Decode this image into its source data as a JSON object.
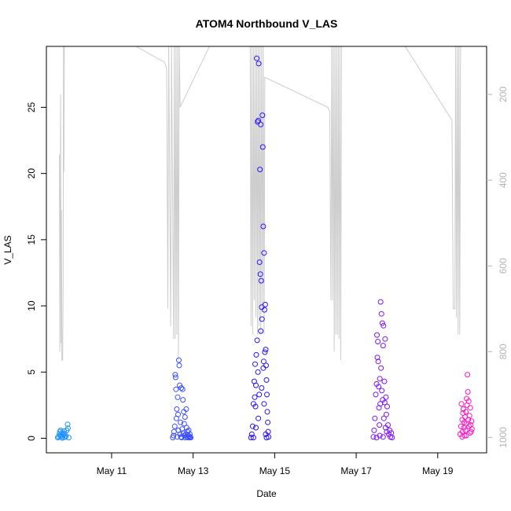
{
  "chart_data": {
    "type": "scatter",
    "title": "ATOM4 Northbound V_LAS",
    "xlabel": "Date",
    "ylabel": "V_LAS",
    "x_ticks": [
      "May 11",
      "May 13",
      "May 15",
      "May 17",
      "May 19"
    ],
    "x_tick_days": [
      11,
      13,
      15,
      17,
      19
    ],
    "xlim_days": [
      9.4,
      20.2
    ],
    "ylim": [
      -1.1,
      29.6
    ],
    "y_ticks": [
      0,
      5,
      10,
      15,
      20,
      25
    ],
    "y2_ticks": [
      200,
      400,
      600,
      800,
      1000
    ],
    "y2lim": [
      1036,
      88
    ],
    "y2_color": "#b3b3b3",
    "grid": false,
    "marker": "open-circle",
    "series": [
      {
        "color": "#1e90ff",
        "points": [
          [
            9.68,
            0.05
          ],
          [
            9.7,
            0.12
          ],
          [
            9.72,
            0.3
          ],
          [
            9.73,
            0.5
          ],
          [
            9.75,
            0.6
          ],
          [
            9.76,
            0.2
          ],
          [
            9.78,
            0.4
          ],
          [
            9.8,
            0.1
          ],
          [
            9.82,
            0.25
          ],
          [
            9.83,
            0.55
          ],
          [
            9.85,
            0.35
          ],
          [
            9.86,
            0.08
          ],
          [
            9.88,
            0.15
          ],
          [
            9.9,
            0.6
          ],
          [
            9.92,
            1.05
          ],
          [
            9.93,
            0.75
          ],
          [
            9.95,
            0.05
          ],
          [
            9.74,
            0.15
          ],
          [
            9.79,
            0.02
          ]
        ]
      },
      {
        "color": "#3c50ff",
        "points": [
          [
            12.5,
            0.05
          ],
          [
            12.52,
            0.2
          ],
          [
            12.53,
            0.5
          ],
          [
            12.55,
            0.9
          ],
          [
            12.56,
            4.8
          ],
          [
            12.57,
            4.6
          ],
          [
            12.58,
            3.7
          ],
          [
            12.59,
            1.5
          ],
          [
            12.6,
            2.2
          ],
          [
            12.61,
            0.1
          ],
          [
            12.62,
            3.1
          ],
          [
            12.63,
            1.8
          ],
          [
            12.64,
            0.6
          ],
          [
            12.65,
            5.9
          ],
          [
            12.66,
            5.5
          ],
          [
            12.67,
            4.0
          ],
          [
            12.68,
            0.3
          ],
          [
            12.69,
            1.2
          ],
          [
            12.7,
            0.1
          ],
          [
            12.71,
            3.8
          ],
          [
            12.72,
            0.05
          ],
          [
            12.73,
            0.7
          ],
          [
            12.74,
            3.7
          ],
          [
            12.75,
            2.9
          ],
          [
            12.76,
            0.4
          ],
          [
            12.77,
            2.0
          ],
          [
            12.78,
            1.1
          ],
          [
            12.79,
            0.2
          ],
          [
            12.8,
            1.6
          ],
          [
            12.81,
            0.05
          ],
          [
            12.82,
            0.3
          ],
          [
            12.83,
            2.2
          ],
          [
            12.84,
            0.8
          ],
          [
            12.85,
            0.1
          ],
          [
            12.86,
            0.5
          ],
          [
            12.87,
            0.25
          ],
          [
            12.88,
            0.05
          ],
          [
            12.89,
            0.6
          ],
          [
            12.9,
            0.15
          ],
          [
            12.91,
            0.05
          ],
          [
            12.92,
            0.3
          ],
          [
            12.93,
            0.1
          ],
          [
            12.94,
            0.05
          ]
        ]
      },
      {
        "color": "#2814ff",
        "points": [
          [
            14.42,
            0.05
          ],
          [
            14.44,
            0.3
          ],
          [
            14.46,
            0.9
          ],
          [
            14.48,
            2.6
          ],
          [
            14.5,
            4.3
          ],
          [
            14.51,
            3.1
          ],
          [
            14.52,
            5.6
          ],
          [
            14.53,
            2.4
          ],
          [
            14.54,
            4.0
          ],
          [
            14.55,
            6.3
          ],
          [
            14.56,
            28.7
          ],
          [
            14.57,
            7.4
          ],
          [
            14.58,
            23.9
          ],
          [
            14.59,
            5.0
          ],
          [
            14.6,
            24.0
          ],
          [
            14.61,
            28.3
          ],
          [
            14.62,
            3.3
          ],
          [
            14.63,
            13.3
          ],
          [
            14.64,
            20.3
          ],
          [
            14.65,
            12.4
          ],
          [
            14.66,
            23.7
          ],
          [
            14.67,
            11.9
          ],
          [
            14.68,
            9.9
          ],
          [
            14.69,
            9.0
          ],
          [
            14.7,
            24.4
          ],
          [
            14.71,
            22.0
          ],
          [
            14.72,
            16.0
          ],
          [
            14.73,
            5.8
          ],
          [
            14.74,
            14.0
          ],
          [
            14.75,
            9.7
          ],
          [
            14.76,
            6.5
          ],
          [
            14.77,
            10.1
          ],
          [
            14.78,
            6.7
          ],
          [
            14.79,
            5.5
          ],
          [
            14.8,
            4.4
          ],
          [
            14.81,
            3.3
          ],
          [
            14.82,
            2.0
          ],
          [
            14.83,
            1.2
          ],
          [
            14.84,
            0.5
          ],
          [
            14.85,
            0.1
          ],
          [
            14.66,
            8.1
          ],
          [
            14.72,
            5.3
          ],
          [
            14.6,
            1.5
          ],
          [
            14.54,
            0.8
          ],
          [
            14.74,
            2.6
          ],
          [
            14.68,
            3.8
          ],
          [
            14.78,
            0.3
          ],
          [
            14.48,
            0.05
          ],
          [
            14.8,
            0.05
          ]
        ]
      },
      {
        "color": "#7d14ff",
        "points": [
          [
            17.42,
            0.1
          ],
          [
            17.44,
            0.6
          ],
          [
            17.46,
            1.5
          ],
          [
            17.48,
            3.3
          ],
          [
            17.5,
            4.1
          ],
          [
            17.51,
            7.8
          ],
          [
            17.52,
            6.1
          ],
          [
            17.53,
            7.3
          ],
          [
            17.54,
            5.8
          ],
          [
            17.55,
            3.9
          ],
          [
            17.56,
            2.3
          ],
          [
            17.57,
            1.0
          ],
          [
            17.58,
            4.5
          ],
          [
            17.59,
            2.6
          ],
          [
            17.6,
            10.3
          ],
          [
            17.61,
            5.3
          ],
          [
            17.62,
            9.4
          ],
          [
            17.63,
            3.6
          ],
          [
            17.64,
            8.7
          ],
          [
            17.65,
            2.9
          ],
          [
            17.66,
            7.0
          ],
          [
            17.67,
            8.5
          ],
          [
            17.68,
            1.5
          ],
          [
            17.69,
            4.3
          ],
          [
            17.7,
            2.7
          ],
          [
            17.71,
            7.5
          ],
          [
            17.72,
            0.8
          ],
          [
            17.73,
            3.1
          ],
          [
            17.74,
            1.8
          ],
          [
            17.75,
            0.5
          ],
          [
            17.76,
            2.4
          ],
          [
            17.78,
            1.0
          ],
          [
            17.8,
            0.3
          ],
          [
            17.82,
            0.6
          ],
          [
            17.84,
            0.1
          ],
          [
            17.86,
            0.4
          ],
          [
            17.88,
            0.05
          ],
          [
            17.58,
            0.2
          ],
          [
            17.66,
            0.1
          ],
          [
            17.5,
            0.05
          ]
        ]
      },
      {
        "color": "#ff14c8",
        "points": [
          [
            19.55,
            0.3
          ],
          [
            19.57,
            0.9
          ],
          [
            19.58,
            2.6
          ],
          [
            19.6,
            1.4
          ],
          [
            19.61,
            0.5
          ],
          [
            19.62,
            1.9
          ],
          [
            19.63,
            2.2
          ],
          [
            19.64,
            0.8
          ],
          [
            19.65,
            1.2
          ],
          [
            19.66,
            0.2
          ],
          [
            19.67,
            1.6
          ],
          [
            19.68,
            0.6
          ],
          [
            19.69,
            2.0
          ],
          [
            19.7,
            1.1
          ],
          [
            19.71,
            3.0
          ],
          [
            19.72,
            2.5
          ],
          [
            19.73,
            4.8
          ],
          [
            19.74,
            3.5
          ],
          [
            19.75,
            1.4
          ],
          [
            19.76,
            2.8
          ],
          [
            19.77,
            0.9
          ],
          [
            19.78,
            1.7
          ],
          [
            19.79,
            0.4
          ],
          [
            19.8,
            2.3
          ],
          [
            19.81,
            1.0
          ],
          [
            19.82,
            0.5
          ],
          [
            19.83,
            1.3
          ],
          [
            19.84,
            0.7
          ],
          [
            19.6,
            0.1
          ],
          [
            19.7,
            0.2
          ]
        ]
      }
    ],
    "depth_color": "#cccccc",
    "depth_trace": [
      [
        9.72,
        340
      ],
      [
        9.73,
        800
      ],
      [
        9.75,
        200
      ],
      [
        9.76,
        780
      ],
      [
        9.77,
        470
      ],
      [
        9.78,
        820
      ],
      [
        9.8,
        820
      ],
      [
        9.81,
        640
      ],
      [
        9.82,
        88
      ],
      [
        9.83,
        380
      ],
      [
        9.84,
        88
      ],
      [
        11.2,
        88
      ],
      [
        11.6,
        88
      ],
      [
        12.3,
        125
      ],
      [
        12.35,
        140
      ],
      [
        12.38,
        700
      ],
      [
        12.4,
        88
      ],
      [
        12.45,
        740
      ],
      [
        12.47,
        88
      ],
      [
        12.52,
        770
      ],
      [
        12.54,
        88
      ],
      [
        12.56,
        770
      ],
      [
        12.58,
        88
      ],
      [
        12.6,
        760
      ],
      [
        12.62,
        88
      ],
      [
        12.64,
        820
      ],
      [
        12.66,
        88
      ],
      [
        12.68,
        230
      ],
      [
        13.4,
        88
      ],
      [
        14.4,
        88
      ],
      [
        14.42,
        740
      ],
      [
        14.44,
        88
      ],
      [
        14.46,
        760
      ],
      [
        14.48,
        88
      ],
      [
        14.5,
        680
      ],
      [
        14.52,
        88
      ],
      [
        14.54,
        720
      ],
      [
        14.56,
        88
      ],
      [
        14.58,
        760
      ],
      [
        14.6,
        88
      ],
      [
        14.62,
        740
      ],
      [
        14.64,
        88
      ],
      [
        14.66,
        760
      ],
      [
        14.68,
        88
      ],
      [
        14.7,
        700
      ],
      [
        14.72,
        88
      ],
      [
        14.74,
        760
      ],
      [
        14.76,
        160
      ],
      [
        16.3,
        230
      ],
      [
        16.35,
        240
      ],
      [
        16.38,
        680
      ],
      [
        16.4,
        88
      ],
      [
        16.42,
        680
      ],
      [
        16.44,
        88
      ],
      [
        16.46,
        800
      ],
      [
        16.48,
        88
      ],
      [
        16.5,
        760
      ],
      [
        16.52,
        88
      ],
      [
        16.54,
        760
      ],
      [
        16.56,
        88
      ],
      [
        16.58,
        770
      ],
      [
        16.6,
        88
      ],
      [
        16.62,
        820
      ],
      [
        16.64,
        88
      ],
      [
        17.6,
        88
      ],
      [
        18.2,
        88
      ],
      [
        19.35,
        260
      ],
      [
        19.38,
        700
      ],
      [
        19.42,
        700
      ],
      [
        19.44,
        88
      ],
      [
        19.46,
        720
      ],
      [
        19.48,
        88
      ],
      [
        19.5,
        760
      ],
      [
        19.52,
        88
      ],
      [
        19.54,
        760
      ],
      [
        19.56,
        88
      ]
    ]
  }
}
